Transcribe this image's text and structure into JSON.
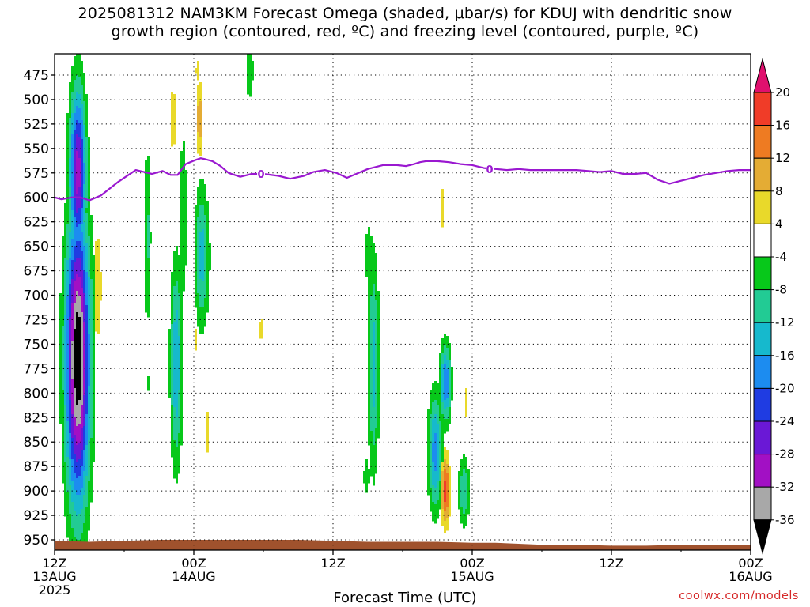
{
  "title": {
    "line1": "2025081312 NAM3KM Forecast Omega (shaded, μbar/s) for KDUJ with dendritic snow",
    "line2": "growth region (contoured, red, ºC) and freezing level (contoured, purple, ºC)"
  },
  "credit": "coolwx.com/models",
  "chart_data": {
    "type": "heatmap",
    "xlabel": "Forecast Time (UTC)",
    "ylabel": "",
    "x_ticks": [
      {
        "hour": 0,
        "line1": "12Z",
        "line2": "13AUG",
        "line3": "2025"
      },
      {
        "hour": 12,
        "line1": "00Z",
        "line2": "14AUG",
        "line3": ""
      },
      {
        "hour": 24,
        "line1": "12Z",
        "line2": "",
        "line3": ""
      },
      {
        "hour": 36,
        "line1": "00Z",
        "line2": "15AUG",
        "line3": ""
      },
      {
        "hour": 48,
        "line1": "12Z",
        "line2": "",
        "line3": ""
      },
      {
        "hour": 60,
        "line1": "00Z",
        "line2": "16AUG",
        "line3": ""
      }
    ],
    "xlim_hours": [
      0,
      60
    ],
    "y_ticks": [
      475,
      500,
      525,
      550,
      575,
      600,
      625,
      650,
      675,
      700,
      725,
      750,
      775,
      800,
      825,
      850,
      875,
      900,
      925,
      950
    ],
    "ylim_hPa": [
      960,
      450
    ],
    "grid": true,
    "colorbar": {
      "labels": [
        "20",
        "16",
        "12",
        "8",
        "4",
        "-4",
        "-8",
        "-12",
        "-16",
        "-20",
        "-24",
        "-28",
        "-32",
        "-36"
      ],
      "bins": [
        {
          "lo": 20,
          "hi": null,
          "color": "#e0106e"
        },
        {
          "lo": 16,
          "hi": 20,
          "color": "#f03c28"
        },
        {
          "lo": 12,
          "hi": 16,
          "color": "#ee7b22"
        },
        {
          "lo": 8,
          "hi": 12,
          "color": "#e4ac34"
        },
        {
          "lo": 4,
          "hi": 8,
          "color": "#e9d92a"
        },
        {
          "lo": -4,
          "hi": 4,
          "color": "#ffffff"
        },
        {
          "lo": -8,
          "hi": -4,
          "color": "#07c81a"
        },
        {
          "lo": -12,
          "hi": -8,
          "color": "#22cb94"
        },
        {
          "lo": -16,
          "hi": -12,
          "color": "#16b9cd"
        },
        {
          "lo": -20,
          "hi": -16,
          "color": "#1c8cf0"
        },
        {
          "lo": -24,
          "hi": -20,
          "color": "#1f3ce2"
        },
        {
          "lo": -28,
          "hi": -24,
          "color": "#6a18d6"
        },
        {
          "lo": -32,
          "hi": -28,
          "color": "#a210c4"
        },
        {
          "lo": -36,
          "hi": -32,
          "color": "#a8a8a8"
        },
        {
          "lo": null,
          "hi": -36,
          "color": "#000000"
        }
      ]
    },
    "omega_features": [
      {
        "t": 2.0,
        "p": 765,
        "w": 1.3,
        "h": 185,
        "min": -40
      },
      {
        "t": 2.0,
        "p": 575,
        "w": 0.9,
        "h": 110,
        "min": -30
      },
      {
        "t": 3.7,
        "p": 690,
        "w": 0.6,
        "h": 100,
        "min": 6
      },
      {
        "t": 3.4,
        "p": 840,
        "w": 0.3,
        "h": 35,
        "min": 5
      },
      {
        "t": 8.0,
        "p": 640,
        "w": 0.4,
        "h": 120,
        "min": -9
      },
      {
        "t": 8.0,
        "p": 790,
        "w": 0.25,
        "h": 35,
        "min": -5
      },
      {
        "t": 10.5,
        "p": 770,
        "w": 0.65,
        "h": 130,
        "min": -16
      },
      {
        "t": 10.2,
        "p": 520,
        "w": 0.45,
        "h": 60,
        "min": 6
      },
      {
        "t": 11.1,
        "p": 620,
        "w": 0.55,
        "h": 130,
        "min": -7
      },
      {
        "t": 12.7,
        "p": 660,
        "w": 0.8,
        "h": 90,
        "min": -14
      },
      {
        "t": 12.5,
        "p": 520,
        "w": 0.35,
        "h": 50,
        "min": 11
      },
      {
        "t": 12.3,
        "p": 470,
        "w": 0.35,
        "h": 30,
        "min": 5
      },
      {
        "t": 13.2,
        "p": 840,
        "w": 0.3,
        "h": 55,
        "min": 5
      },
      {
        "t": 12.1,
        "p": 745,
        "w": 0.3,
        "h": 35,
        "min": 5
      },
      {
        "t": 16.8,
        "p": 470,
        "w": 0.5,
        "h": 45,
        "min": -7
      },
      {
        "t": 17.8,
        "p": 475,
        "w": 0.12,
        "h": 18,
        "min": 5
      },
      {
        "t": 17.8,
        "p": 735,
        "w": 0.35,
        "h": 40,
        "min": 5
      },
      {
        "t": 27.5,
        "p": 770,
        "w": 0.6,
        "h": 140,
        "min": -14
      },
      {
        "t": 27.1,
        "p": 660,
        "w": 0.5,
        "h": 50,
        "min": -7
      },
      {
        "t": 26.9,
        "p": 885,
        "w": 0.6,
        "h": 45,
        "min": -5
      },
      {
        "t": 32.8,
        "p": 860,
        "w": 0.75,
        "h": 75,
        "min": -18
      },
      {
        "t": 33.5,
        "p": 610,
        "w": 0.3,
        "h": 60,
        "min": 5
      },
      {
        "t": 33.7,
        "p": 790,
        "w": 0.6,
        "h": 50,
        "min": -20
      },
      {
        "t": 33.7,
        "p": 900,
        "w": 0.45,
        "h": 45,
        "min": 18
      },
      {
        "t": 35.3,
        "p": 900,
        "w": 0.6,
        "h": 45,
        "min": -12
      },
      {
        "t": 35.5,
        "p": 810,
        "w": 0.3,
        "h": 40,
        "min": 5
      }
    ],
    "freezing_level": {
      "label": "0",
      "color": "#9a18d0",
      "t": [
        0,
        0.6,
        1.5,
        2.2,
        3.0,
        4.0,
        5.5,
        7.0,
        8.4,
        9.3,
        10.0,
        10.6,
        11.3,
        12.1,
        12.6,
        13.0,
        13.6,
        14.3,
        15.0,
        16.0,
        17.0,
        18.0,
        19.3,
        20.3,
        21.5,
        22.3,
        23.3,
        24.3,
        25.2,
        26.0,
        27.0,
        28.3,
        29.5,
        30.3,
        31.0,
        31.5,
        32.0,
        33.0,
        34.0,
        35.0,
        36.0,
        37.0,
        38.0,
        39.0,
        40.0,
        41.0,
        42.0,
        43.0,
        44.0,
        45.0,
        46.0,
        47.0,
        48.0,
        49.0,
        50.0,
        51.0,
        52.0,
        53.0,
        54.0,
        55.0,
        56.0,
        57.0,
        58.0,
        59.0,
        60.0
      ],
      "p": [
        600,
        602,
        600,
        600,
        603,
        598,
        584,
        572,
        576,
        573,
        577,
        577,
        566,
        562,
        560,
        561,
        563,
        568,
        575,
        579,
        576,
        576,
        578,
        581,
        578,
        574,
        572,
        575,
        580,
        576,
        571,
        567,
        567,
        568,
        566,
        564,
        563,
        563,
        564,
        566,
        567,
        570,
        571,
        572,
        571,
        572,
        572,
        572,
        572,
        572,
        573,
        574,
        573,
        576,
        576,
        575,
        582,
        586,
        583,
        580,
        577,
        575,
        573,
        572,
        572
      ]
    },
    "terrain": {
      "color": "#a0522d",
      "t": [
        0,
        3,
        6,
        9,
        12,
        15,
        18,
        21,
        24,
        27,
        30,
        33,
        36,
        38,
        40,
        42,
        45,
        48,
        51,
        54,
        57,
        60
      ],
      "p": [
        951,
        952,
        951,
        950,
        950,
        950,
        950,
        950,
        951,
        952,
        952,
        952,
        953,
        953,
        954,
        955,
        955,
        956,
        956,
        955,
        955,
        955
      ]
    }
  }
}
